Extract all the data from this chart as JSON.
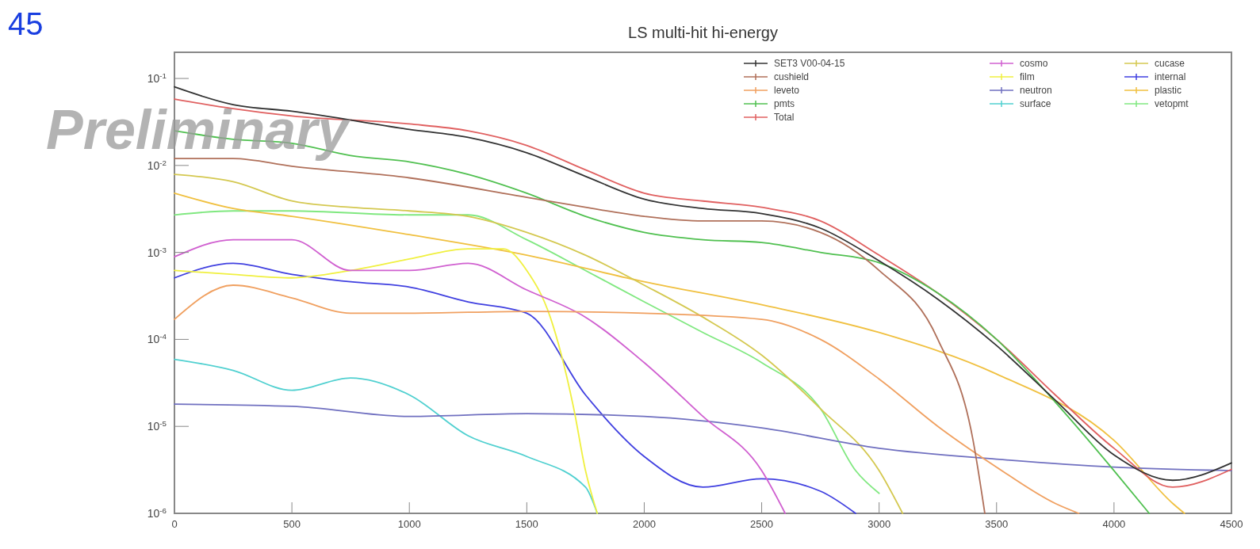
{
  "chart_data": {
    "type": "line",
    "title": "LS   multi-hit   hi-energy",
    "annotations": [
      "Preliminary",
      "45"
    ],
    "log": "y",
    "grid": false,
    "legend": "top right",
    "xlim": [
      0,
      4500
    ],
    "xticks": [
      0,
      500,
      1000,
      1500,
      2000,
      2500,
      3000,
      3500,
      4000,
      4500
    ],
    "ylim": [
      1e-06,
      0.2
    ],
    "yticks": [
      {
        "value": 0.1,
        "label": "10$^{-1}$"
      },
      {
        "value": 0.01,
        "label": "10$^{-2}$"
      },
      {
        "value": 0.001,
        "label": "10$^{-3}$"
      },
      {
        "value": 0.0001,
        "label": "10$^{-4}$"
      },
      {
        "value": 1e-05,
        "label": "10$^{-5}$"
      },
      {
        "value": 1e-06,
        "label": "10$^{-6}$"
      }
    ],
    "series": [
      {
        "name": "SET3  V00-04-15",
        "color": "#333333",
        "x": [
          0,
          250,
          500,
          1000,
          1250,
          1500,
          1750,
          2000,
          2250,
          2500,
          2750,
          3000,
          3250,
          3500,
          3750,
          4000,
          4250,
          4500
        ],
        "values": [
          0.08,
          0.05,
          0.042,
          0.026,
          0.021,
          0.014,
          0.0075,
          0.0041,
          0.0032,
          0.0028,
          0.0019,
          0.0008,
          0.00029,
          8.5e-05,
          2e-05,
          4.7e-06,
          2.4e-06,
          3.8e-06
        ]
      },
      {
        "name": "cushield",
        "color": "#b0705a",
        "x": [
          0,
          250,
          500,
          1000,
          1500,
          1750,
          2000,
          2250,
          2500,
          2750,
          3000,
          3250,
          3400,
          3450
        ],
        "values": [
          0.012,
          0.012,
          0.0098,
          0.0072,
          0.0043,
          0.0033,
          0.0026,
          0.0023,
          0.0023,
          0.0017,
          0.00062,
          0.0001,
          6.9e-06,
          1e-06
        ]
      },
      {
        "name": "leveto",
        "color": "#f0a060",
        "x": [
          0,
          250,
          500,
          750,
          1000,
          1500,
          2000,
          2500,
          2750,
          3000,
          3250,
          3500,
          3750,
          3850
        ],
        "values": [
          0.00017,
          0.00042,
          0.0003,
          0.0002,
          0.0002,
          0.00021,
          0.0002,
          0.00017,
          0.0001,
          3.5e-05,
          1e-05,
          3.4e-06,
          1.3e-06,
          1e-06
        ]
      },
      {
        "name": "pmts",
        "color": "#50c050",
        "x": [
          0,
          250,
          500,
          750,
          1000,
          1250,
          1500,
          1750,
          2000,
          2250,
          2500,
          2750,
          3000,
          3250,
          3500,
          3750,
          4000,
          4150
        ],
        "values": [
          0.025,
          0.02,
          0.018,
          0.013,
          0.011,
          0.0079,
          0.0048,
          0.0026,
          0.0017,
          0.0014,
          0.0013,
          0.001,
          0.00076,
          0.00034,
          0.0001,
          1.9e-05,
          3.1e-06,
          1e-06
        ]
      },
      {
        "name": "Total",
        "color": "#e06060",
        "x": [
          0,
          250,
          500,
          1000,
          1250,
          1500,
          1750,
          2000,
          2250,
          2500,
          2750,
          3000,
          3250,
          3500,
          3750,
          4000,
          4250,
          4500
        ],
        "values": [
          0.058,
          0.045,
          0.037,
          0.03,
          0.025,
          0.017,
          0.0089,
          0.0048,
          0.0039,
          0.0033,
          0.0023,
          0.00093,
          0.00034,
          0.0001,
          2.3e-05,
          5.6e-06,
          2e-06,
          3.2e-06
        ]
      },
      {
        "name": "cosmo",
        "color": "#d060d0",
        "x": [
          0,
          250,
          500,
          750,
          1000,
          1250,
          1500,
          1750,
          2000,
          2250,
          2500,
          2600
        ],
        "values": [
          0.00089,
          0.0014,
          0.0014,
          0.00062,
          0.00062,
          0.00075,
          0.00037,
          0.00018,
          5.4e-05,
          1.3e-05,
          3.1e-06,
          1e-06
        ]
      },
      {
        "name": "film",
        "color": "#f0f040",
        "x": [
          0,
          250,
          500,
          750,
          1000,
          1250,
          1400,
          1500,
          1600,
          1700,
          1750,
          1800
        ],
        "values": [
          0.00062,
          0.00056,
          0.00051,
          0.00062,
          0.00084,
          0.0011,
          0.0011,
          0.00062,
          0.00018,
          1.6e-05,
          3.1e-06,
          1e-06
        ]
      },
      {
        "name": "neutron",
        "color": "#7070c0",
        "x": [
          0,
          500,
          1000,
          1500,
          2000,
          2500,
          3000,
          3500,
          4000,
          4500
        ],
        "values": [
          1.8e-05,
          1.7e-05,
          1.3e-05,
          1.4e-05,
          1.3e-05,
          9.6e-06,
          5.6e-06,
          4.2e-06,
          3.4e-06,
          3.1e-06
        ]
      },
      {
        "name": "surface",
        "color": "#50d0d0",
        "x": [
          0,
          250,
          500,
          750,
          1000,
          1250,
          1500,
          1750,
          1800
        ],
        "values": [
          5.9e-05,
          4.4e-05,
          2.6e-05,
          3.6e-05,
          2.3e-05,
          7.8e-06,
          4.5e-06,
          2e-06,
          1e-06
        ]
      },
      {
        "name": "cucase",
        "color": "#d4c850",
        "x": [
          0,
          250,
          500,
          750,
          1000,
          1250,
          1500,
          1750,
          2000,
          2250,
          2500,
          2750,
          3000,
          3100
        ],
        "values": [
          0.0079,
          0.0065,
          0.0039,
          0.0033,
          0.003,
          0.0026,
          0.0017,
          0.00093,
          0.00042,
          0.00018,
          6.6e-05,
          1.6e-05,
          3.1e-06,
          1e-06
        ]
      },
      {
        "name": "internal",
        "color": "#4040e0",
        "x": [
          0,
          250,
          500,
          750,
          1000,
          1250,
          1500,
          1750,
          2000,
          2250,
          2500,
          2750,
          2900
        ],
        "values": [
          0.00051,
          0.00075,
          0.00056,
          0.00046,
          0.0004,
          0.00027,
          0.0002,
          2.3e-05,
          4.5e-06,
          2e-06,
          2.5e-06,
          1.8e-06,
          1e-06
        ]
      },
      {
        "name": "plastic",
        "color": "#f0c040",
        "x": [
          0,
          250,
          500,
          1000,
          1500,
          2000,
          2500,
          3000,
          3500,
          4000,
          4250,
          4300
        ],
        "values": [
          0.0048,
          0.0032,
          0.0026,
          0.0016,
          0.00093,
          0.00046,
          0.00025,
          0.00012,
          4e-05,
          6.9e-06,
          1.3e-06,
          1e-06
        ]
      },
      {
        "name": "vetopmt",
        "color": "#80e880",
        "x": [
          0,
          250,
          500,
          1000,
          1250,
          1500,
          1750,
          2000,
          2250,
          2500,
          2750,
          2900,
          3000
        ],
        "values": [
          0.0027,
          0.003,
          0.003,
          0.0027,
          0.0027,
          0.0014,
          0.00062,
          0.00027,
          0.00012,
          5.4e-05,
          1.6e-05,
          3.1e-06,
          1.7e-06
        ]
      }
    ]
  }
}
